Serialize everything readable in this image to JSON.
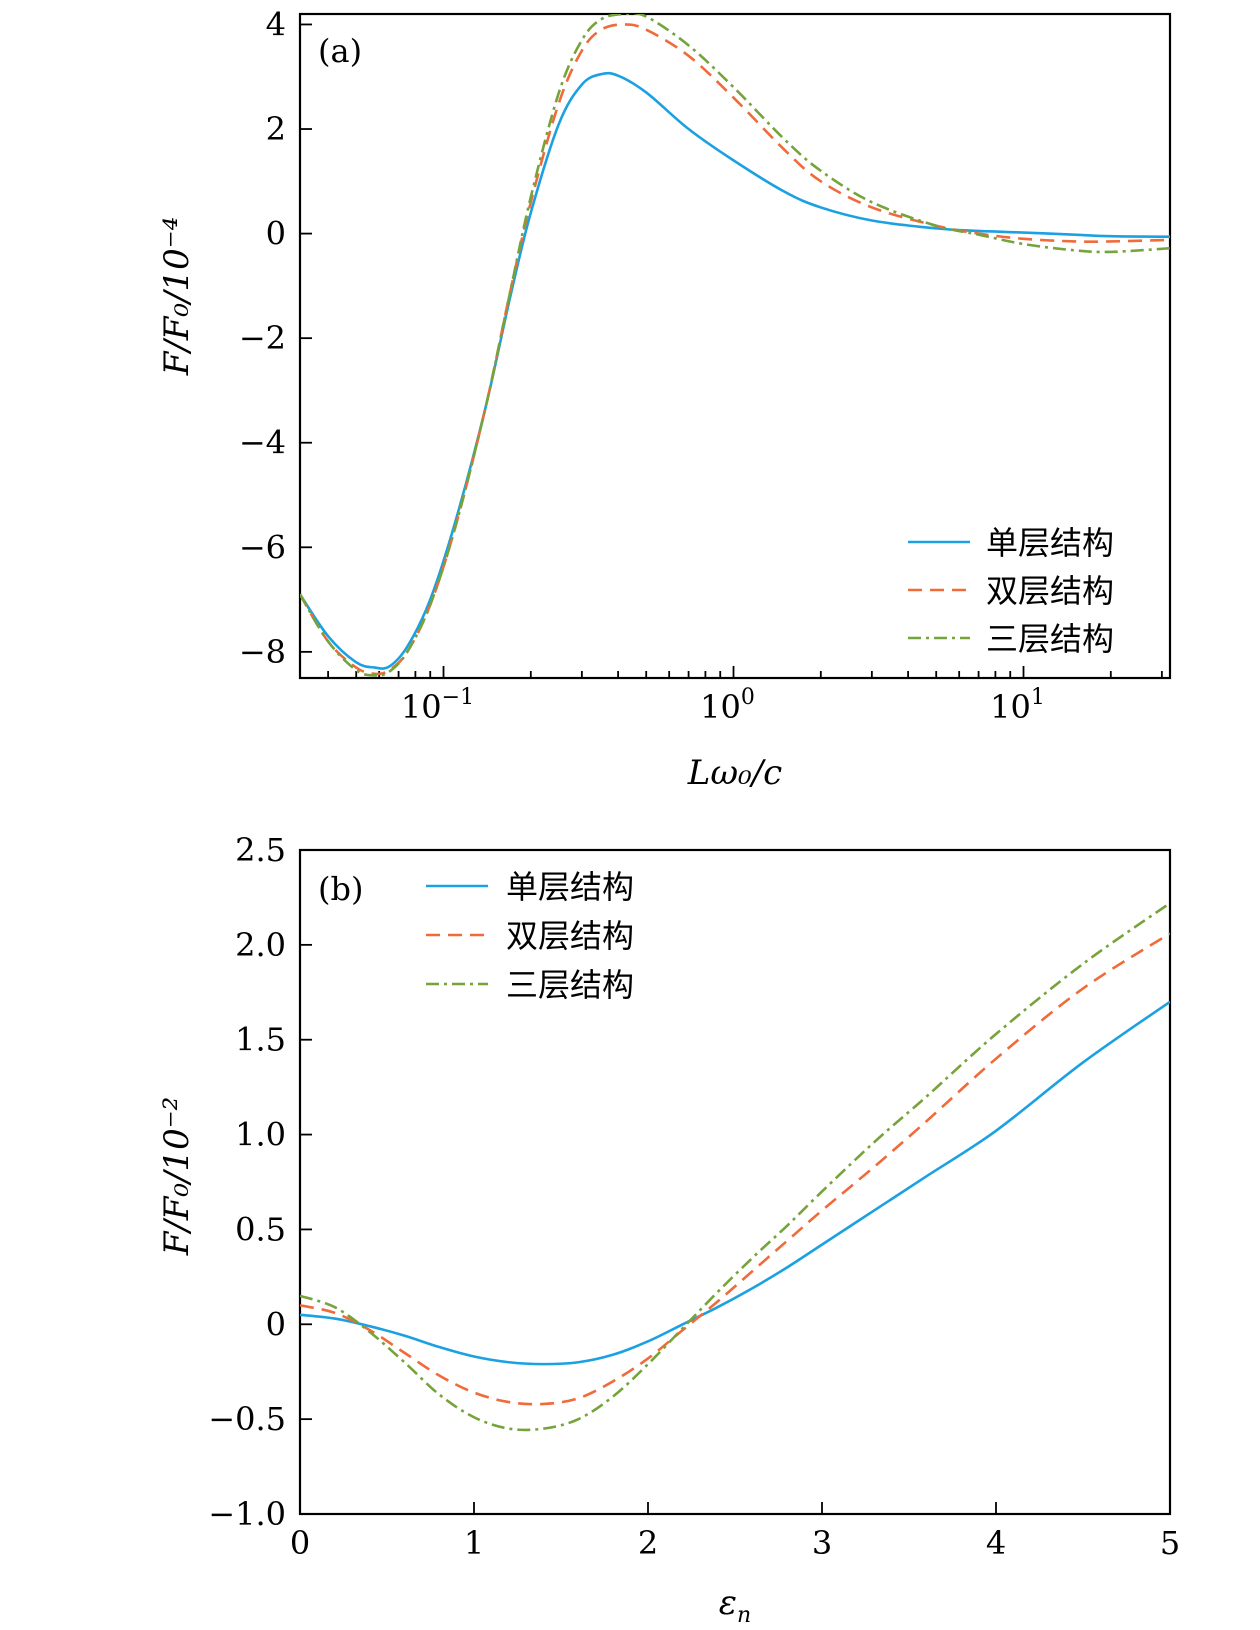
{
  "chart_data": [
    {
      "type": "line",
      "panel_label": "(a)",
      "xlabel": "Lω₀/c",
      "ylabel": "F/F₀/10⁻⁴",
      "xscale": "log",
      "xlim": [
        0.032,
        32
      ],
      "ylim": [
        -8.5,
        4.2
      ],
      "xticks": [
        {
          "value": 0.1,
          "base": "10",
          "exp": "−1"
        },
        {
          "value": 1,
          "base": "10",
          "exp": "0"
        },
        {
          "value": 10,
          "base": "10",
          "exp": "1"
        }
      ],
      "yticks": [
        4,
        2,
        0,
        -2,
        -4,
        -6,
        -8
      ],
      "ytick_labels": [
        "4",
        "2",
        "0",
        "−2",
        "−4",
        "−6",
        "−8"
      ],
      "legend_position": "bottom-right",
      "series": [
        {
          "name": "单层结构",
          "color": "#1ba1e2",
          "style": "solid",
          "x": [
            0.032,
            0.04,
            0.05,
            0.058,
            0.065,
            0.075,
            0.09,
            0.11,
            0.14,
            0.17,
            0.2,
            0.25,
            0.3,
            0.35,
            0.4,
            0.5,
            0.7,
            1.0,
            1.5,
            2,
            3,
            5,
            7,
            10,
            15,
            20,
            32
          ],
          "y": [
            -6.9,
            -7.7,
            -8.2,
            -8.3,
            -8.28,
            -7.9,
            -7.0,
            -5.5,
            -3.3,
            -1.2,
            0.4,
            2.1,
            2.85,
            3.05,
            3.02,
            2.7,
            2.0,
            1.4,
            0.8,
            0.5,
            0.25,
            0.1,
            0.05,
            0.02,
            -0.02,
            -0.05,
            -0.06
          ]
        },
        {
          "name": "双层结构",
          "color": "#f06a3a",
          "style": "dashed",
          "x": [
            0.032,
            0.04,
            0.05,
            0.058,
            0.065,
            0.075,
            0.09,
            0.11,
            0.14,
            0.17,
            0.2,
            0.25,
            0.3,
            0.35,
            0.42,
            0.5,
            0.7,
            1.0,
            1.5,
            2,
            3,
            5,
            7,
            10,
            15,
            20,
            32
          ],
          "y": [
            -6.9,
            -7.8,
            -8.3,
            -8.42,
            -8.35,
            -8.0,
            -7.1,
            -5.6,
            -3.3,
            -1.1,
            0.6,
            2.5,
            3.5,
            3.9,
            4.0,
            3.9,
            3.4,
            2.6,
            1.6,
            1.0,
            0.5,
            0.15,
            0.0,
            -0.1,
            -0.15,
            -0.15,
            -0.12
          ]
        },
        {
          "name": "三层结构",
          "color": "#76a33a",
          "style": "dashdot",
          "x": [
            0.032,
            0.04,
            0.05,
            0.058,
            0.065,
            0.075,
            0.09,
            0.11,
            0.14,
            0.17,
            0.2,
            0.25,
            0.3,
            0.35,
            0.42,
            0.5,
            0.7,
            1.0,
            1.5,
            2,
            3,
            5,
            7,
            10,
            15,
            20,
            32
          ],
          "y": [
            -6.9,
            -7.8,
            -8.35,
            -8.45,
            -8.38,
            -8.0,
            -7.1,
            -5.6,
            -3.3,
            -1.1,
            0.7,
            2.7,
            3.7,
            4.1,
            4.2,
            4.15,
            3.6,
            2.8,
            1.8,
            1.2,
            0.6,
            0.15,
            -0.02,
            -0.2,
            -0.32,
            -0.35,
            -0.28
          ]
        }
      ]
    },
    {
      "type": "line",
      "panel_label": "(b)",
      "xlabel": "εn",
      "ylabel": "F/F₀/10⁻²",
      "xscale": "linear",
      "xlim": [
        0,
        5
      ],
      "ylim": [
        -1.0,
        2.5
      ],
      "xticks": [
        0,
        1,
        2,
        3,
        4,
        5
      ],
      "xtick_labels": [
        "0",
        "1",
        "2",
        "3",
        "4",
        "5"
      ],
      "yticks": [
        2.5,
        2.0,
        1.5,
        1.0,
        0.5,
        0,
        -0.5,
        -1.0
      ],
      "ytick_labels": [
        "2.5",
        "2.0",
        "1.5",
        "1.0",
        "0.5",
        "0",
        "−0.5",
        "−1.0"
      ],
      "legend_position": "top-left",
      "series": [
        {
          "name": "单层结构",
          "color": "#1ba1e2",
          "style": "solid",
          "x": [
            0,
            0.2,
            0.4,
            0.6,
            0.8,
            1.0,
            1.2,
            1.4,
            1.6,
            1.8,
            2.0,
            2.2,
            2.4,
            2.6,
            2.8,
            3.0,
            3.3,
            3.6,
            4.0,
            4.5,
            5.0
          ],
          "y": [
            0.05,
            0.03,
            -0.01,
            -0.06,
            -0.12,
            -0.17,
            -0.2,
            -0.21,
            -0.2,
            -0.16,
            -0.09,
            0.0,
            0.09,
            0.19,
            0.3,
            0.42,
            0.6,
            0.78,
            1.02,
            1.38,
            1.7
          ]
        },
        {
          "name": "双层结构",
          "color": "#f06a3a",
          "style": "dashed",
          "x": [
            0,
            0.2,
            0.4,
            0.6,
            0.8,
            1.0,
            1.2,
            1.4,
            1.6,
            1.8,
            2.0,
            2.2,
            2.4,
            2.6,
            2.8,
            3.0,
            3.3,
            3.6,
            4.0,
            4.5,
            5.0
          ],
          "y": [
            0.1,
            0.06,
            -0.03,
            -0.15,
            -0.27,
            -0.36,
            -0.41,
            -0.42,
            -0.39,
            -0.3,
            -0.18,
            -0.03,
            0.12,
            0.28,
            0.44,
            0.6,
            0.83,
            1.07,
            1.4,
            1.77,
            2.06
          ]
        },
        {
          "name": "三层结构",
          "color": "#76a33a",
          "style": "dashdot",
          "x": [
            0,
            0.2,
            0.4,
            0.6,
            0.8,
            1.0,
            1.2,
            1.4,
            1.6,
            1.8,
            2.0,
            2.2,
            2.4,
            2.6,
            2.8,
            3.0,
            3.3,
            3.6,
            4.0,
            4.5,
            5.0
          ],
          "y": [
            0.15,
            0.09,
            -0.04,
            -0.2,
            -0.37,
            -0.49,
            -0.55,
            -0.55,
            -0.5,
            -0.38,
            -0.21,
            -0.02,
            0.17,
            0.35,
            0.52,
            0.7,
            0.96,
            1.2,
            1.53,
            1.9,
            2.22
          ]
        }
      ]
    }
  ]
}
